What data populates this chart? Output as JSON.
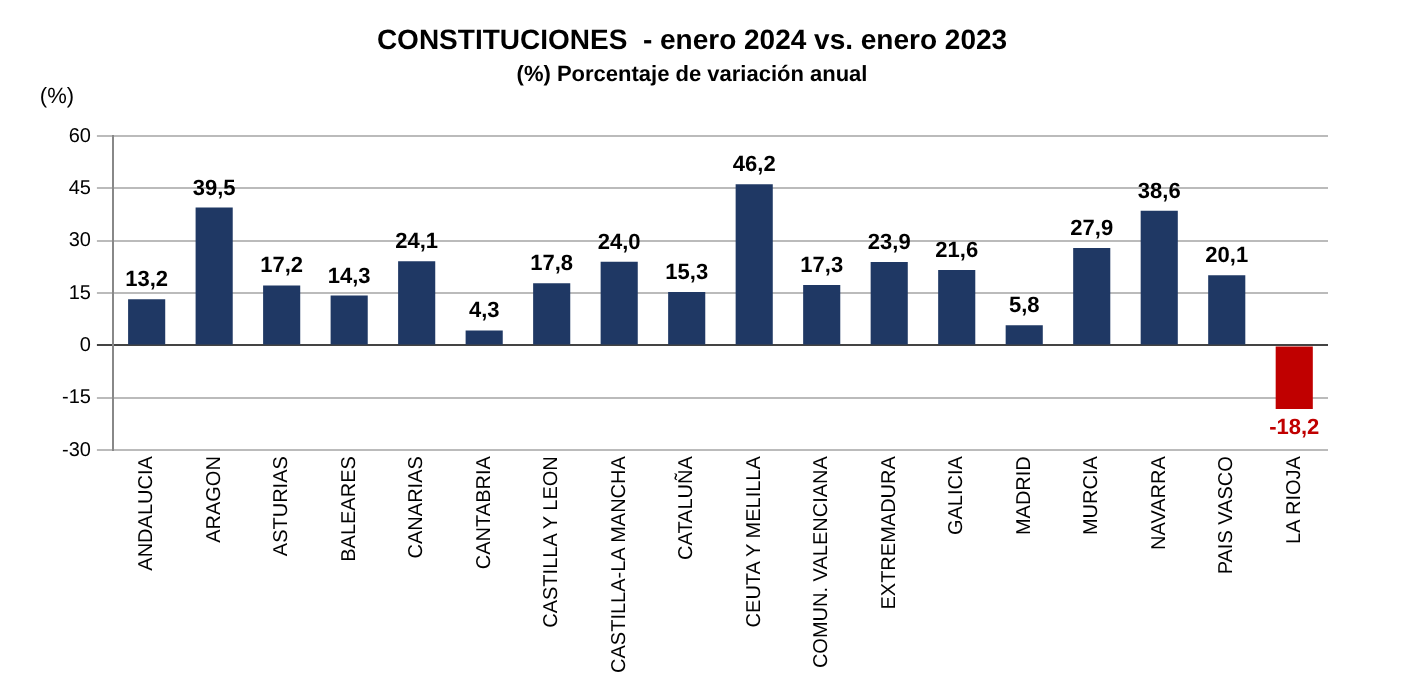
{
  "chart_data": {
    "type": "bar",
    "title": "CONSTITUCIONES  - enero 2024 vs. enero 2023",
    "subtitle": "(%) Porcentaje de variación anual",
    "ylabel": "(%)",
    "categories": [
      "ANDALUCIA",
      "ARAGON",
      "ASTURIAS",
      "BALEARES",
      "CANARIAS",
      "CANTABRIA",
      "CASTILLA Y LEON",
      "CASTILLA-LA MANCHA",
      "CATALUÑA",
      "CEUTA Y MELILLA",
      "COMUN. VALENCIANA",
      "EXTREMADURA",
      "GALICIA",
      "MADRID",
      "MURCIA",
      "NAVARRA",
      "PAIS VASCO",
      "LA RIOJA"
    ],
    "values": [
      13.2,
      39.5,
      17.2,
      14.3,
      24.1,
      4.3,
      17.8,
      24.0,
      15.3,
      46.2,
      17.3,
      23.9,
      21.6,
      5.8,
      27.9,
      38.6,
      20.1,
      -18.2
    ],
    "value_labels": [
      "13,2",
      "39,5",
      "17,2",
      "14,3",
      "24,1",
      "4,3",
      "17,8",
      "24,0",
      "15,3",
      "46,2",
      "17,3",
      "23,9",
      "21,6",
      "5,8",
      "27,9",
      "38,6",
      "20,1",
      "-18,2"
    ],
    "colors": [
      "#1f3864",
      "#1f3864",
      "#1f3864",
      "#1f3864",
      "#1f3864",
      "#1f3864",
      "#1f3864",
      "#1f3864",
      "#1f3864",
      "#1f3864",
      "#1f3864",
      "#1f3864",
      "#1f3864",
      "#1f3864",
      "#1f3864",
      "#1f3864",
      "#1f3864",
      "#c00000"
    ],
    "ylim": [
      -30,
      60
    ],
    "yticks": [
      -30,
      -15,
      0,
      15,
      30,
      45,
      60
    ],
    "grid": "y",
    "legend": false
  }
}
